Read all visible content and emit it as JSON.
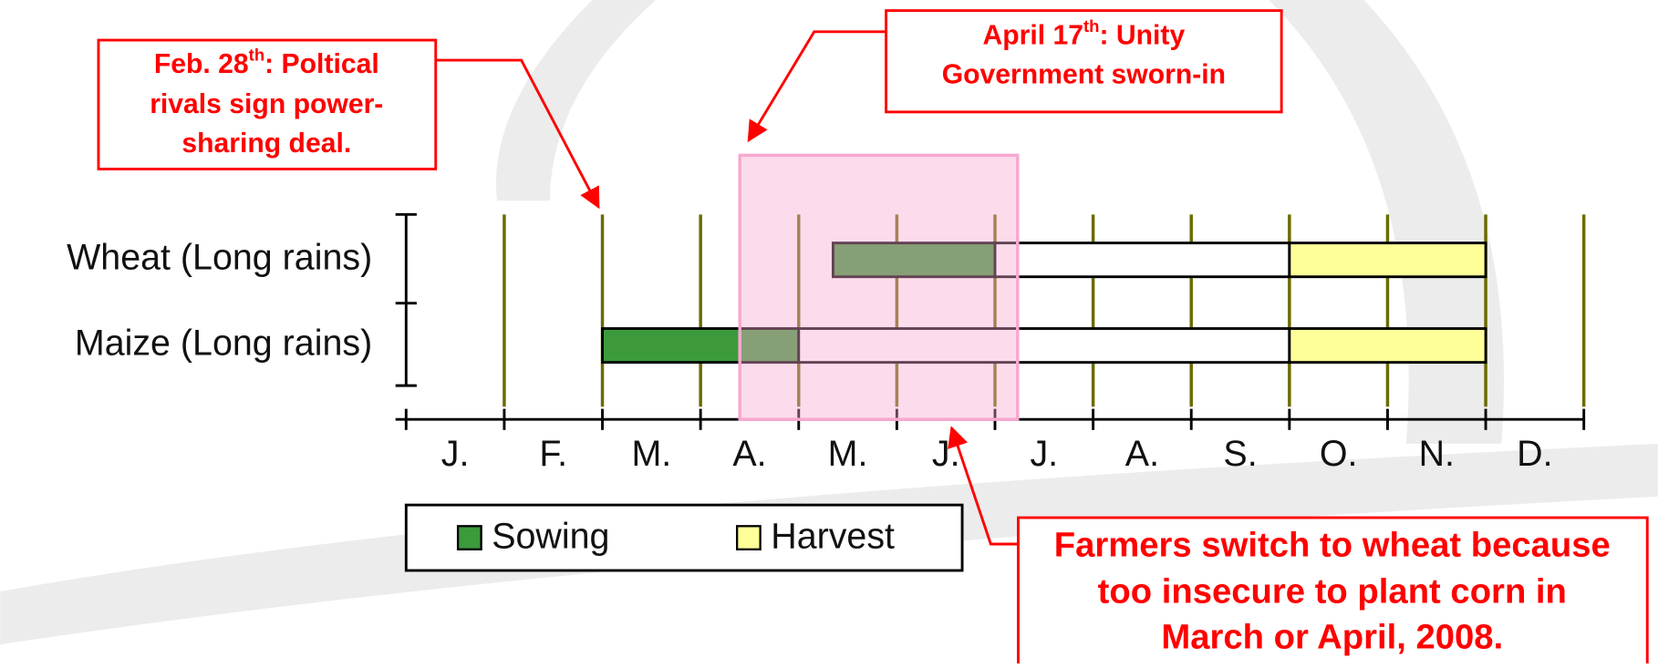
{
  "chart_data": {
    "type": "gantt",
    "categories": [
      "J.",
      "F.",
      "M.",
      "A.",
      "M.",
      "J.",
      "J.",
      "A.",
      "S.",
      "O.",
      "N.",
      "D."
    ],
    "xlim": [
      0,
      12
    ],
    "xticks": [
      0,
      1,
      2,
      3,
      4,
      5,
      6,
      7,
      8,
      9,
      10,
      11,
      12
    ],
    "grid": true,
    "grid_color": "#6b6b00",
    "rows": [
      {
        "label": "Wheat (Long rains)",
        "segments": [
          {
            "start": 4.35,
            "end": 6,
            "color": "#3c9a3c"
          },
          {
            "start": 6,
            "end": 9,
            "color": "#ffffff"
          },
          {
            "start": 9,
            "end": 11,
            "color": "#ffff99"
          }
        ]
      },
      {
        "label": "Maize (Long rains)",
        "segments": [
          {
            "start": 2,
            "end": 4,
            "color": "#3c9a3c"
          },
          {
            "start": 4,
            "end": 9,
            "color": "#ffffff"
          },
          {
            "start": 9,
            "end": 11,
            "color": "#ffff99"
          }
        ]
      }
    ],
    "legend": [
      {
        "name": "Sowing",
        "color": "#3c9a3c"
      },
      {
        "name": "Harvest",
        "color": "#ffff99"
      }
    ],
    "highlight": {
      "start": 3.4,
      "end": 6.23,
      "color": "#f7a8cf"
    },
    "annotations": [
      {
        "lines": [
          [
            "Feb. 28",
            "th",
            ":  Poltical"
          ],
          [
            "rivals sign power-"
          ],
          [
            "sharing deal."
          ]
        ]
      },
      {
        "lines": [
          [
            "April 17",
            "th",
            ":  Unity"
          ],
          [
            "Government sworn-in"
          ]
        ]
      },
      {
        "lines": [
          [
            "Farmers switch to wheat because"
          ],
          [
            "too insecure to plant corn in"
          ],
          [
            "March or April, 2008."
          ]
        ]
      }
    ]
  }
}
